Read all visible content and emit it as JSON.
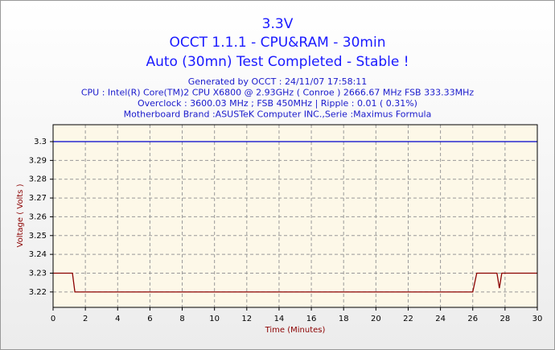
{
  "chart_data": {
    "type": "line",
    "title": [
      "3.3V",
      "OCCT 1.1.1 - CPU&RAM - 30min",
      "Auto (30mn) Test Completed - Stable !"
    ],
    "subtitle": [
      "Generated by OCCT : 24/11/07 17:58:11",
      "CPU : Intel(R) Core(TM)2 CPU X6800 @ 2.93GHz ( Conroe ) 2666.67 MHz FSB 333.33MHz",
      "Overclock : 3600.03 MHz ; FSB 450MHz | Ripple : 0.01 ( 0.31%)",
      "Motherboard Brand :ASUSTeK Computer INC.,Serie :Maximus Formula"
    ],
    "x_label": "Time (Minutes)",
    "y_label": "Voltage ( Volts )",
    "series": [
      {
        "color": "#0000cc",
        "x": [
          0,
          30
        ],
        "values": [
          3.3,
          3.3
        ]
      },
      {
        "color": "#8b0000",
        "x": [
          0,
          1.2,
          1.35,
          26.0,
          26.25,
          27.5,
          27.65,
          27.8,
          30
        ],
        "values": [
          3.23,
          3.23,
          3.22,
          3.22,
          3.23,
          3.23,
          3.222,
          3.23,
          3.23
        ]
      }
    ],
    "xlim": [
      0,
      30
    ],
    "xticks": [
      0,
      2,
      4,
      6,
      8,
      10,
      12,
      14,
      16,
      18,
      20,
      22,
      24,
      26,
      28,
      30
    ],
    "ylim": [
      3.2118,
      3.309
    ],
    "yticks": [
      3.22,
      3.23,
      3.24,
      3.25,
      3.26,
      3.27,
      3.28,
      3.29,
      3.3
    ],
    "grid": true
  }
}
